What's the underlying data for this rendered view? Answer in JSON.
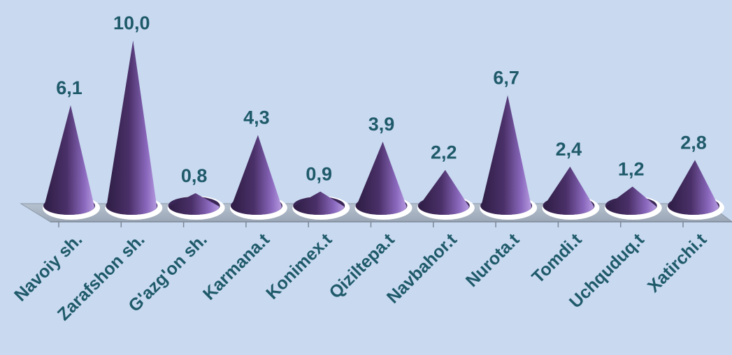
{
  "chart_data": {
    "type": "bar",
    "style": "3d-cone",
    "categories": [
      "Navoiy sh.",
      "Zarafshon sh.",
      "G'azg'on sh.",
      "Karmana.t",
      "Konimex.t",
      "Qiziltepa.t",
      "Navbahor.t",
      "Nurota.t",
      "Tomdi.t",
      "Uchquduq.t",
      "Xatirchi.t"
    ],
    "values": [
      6.1,
      10.0,
      0.8,
      4.3,
      0.9,
      3.9,
      2.2,
      6.7,
      2.4,
      1.2,
      2.8
    ],
    "value_labels": [
      "6,1",
      "10,0",
      "0,8",
      "4,3",
      "0,9",
      "3,9",
      "2,2",
      "6,7",
      "2,4",
      "1,2",
      "2,8"
    ],
    "title": "",
    "xlabel": "",
    "ylabel": "",
    "ylim": [
      0,
      10
    ],
    "grid": false,
    "legend": "none",
    "colors": {
      "background": "#c8d9f0",
      "cone_dark": "#2e1d44",
      "cone_mid": "#6d4f9a",
      "cone_light": "#b59ae0",
      "floor": "#a7b3c2",
      "label": "#1f5a6a"
    }
  }
}
